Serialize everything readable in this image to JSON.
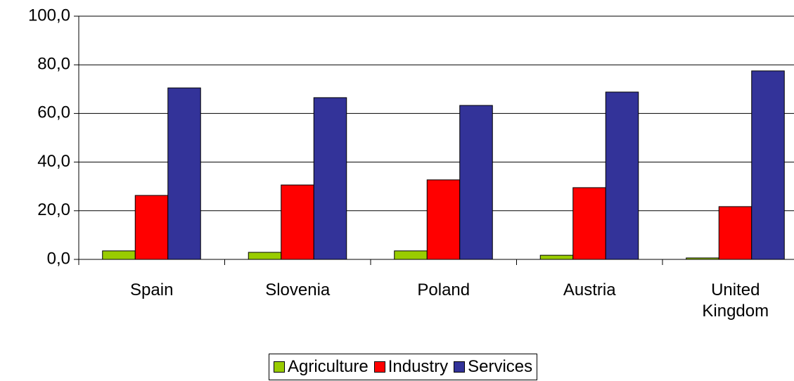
{
  "chart_data": {
    "type": "bar",
    "categories": [
      "Spain",
      "Slovenia",
      "Poland",
      "Austria",
      "United Kingdom"
    ],
    "series": [
      {
        "name": "Agriculture",
        "color": "#99cc00",
        "values": [
          3.5,
          2.9,
          3.5,
          1.7,
          0.6
        ]
      },
      {
        "name": "Industry",
        "color": "#ff0000",
        "values": [
          26.3,
          30.6,
          32.7,
          29.5,
          21.7
        ]
      },
      {
        "name": "Services",
        "color": "#333399",
        "values": [
          70.5,
          66.5,
          63.3,
          68.8,
          77.5
        ]
      }
    ],
    "ylim": [
      0,
      100
    ],
    "yticks": [
      {
        "value": 0,
        "label": "0,0"
      },
      {
        "value": 20,
        "label": "20,0"
      },
      {
        "value": 40,
        "label": "40,0"
      },
      {
        "value": 60,
        "label": "60,0"
      },
      {
        "value": 80,
        "label": "80,0"
      },
      {
        "value": 100,
        "label": "100,0"
      }
    ],
    "grid": true,
    "legend": "bottom"
  }
}
